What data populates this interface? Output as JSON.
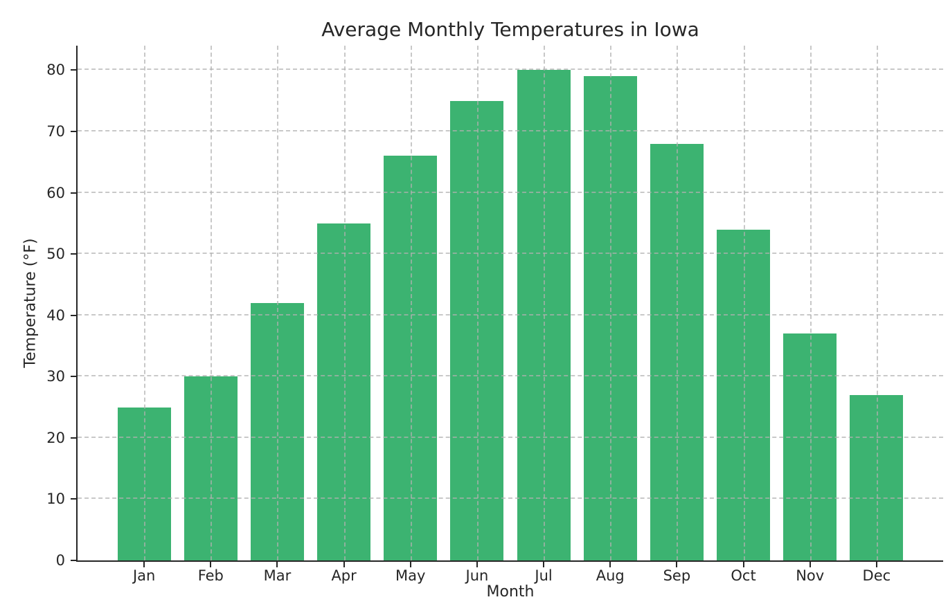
{
  "chart_data": {
    "type": "bar",
    "title": "Average Monthly Temperatures in Iowa",
    "xlabel": "Month",
    "ylabel": "Temperature (°F)",
    "categories": [
      "Jan",
      "Feb",
      "Mar",
      "Apr",
      "May",
      "Jun",
      "Jul",
      "Aug",
      "Sep",
      "Oct",
      "Nov",
      "Dec"
    ],
    "values": [
      25,
      30,
      42,
      55,
      66,
      75,
      80,
      79,
      68,
      54,
      37,
      27
    ],
    "yticks": [
      0,
      10,
      20,
      30,
      40,
      50,
      60,
      70,
      80
    ],
    "ylim": [
      0,
      84
    ],
    "xlim": [
      -1,
      12
    ],
    "bar_width_units": 0.8,
    "grid": true,
    "grid_style": "dashed",
    "grid_above_bars": true,
    "legend_position": "none",
    "colors": {
      "bar": "#3cb371",
      "grid": "#b0b0b0",
      "grid_alpha": 0.7,
      "spine": "#262626",
      "text": "#262626",
      "background": "#ffffff"
    }
  }
}
